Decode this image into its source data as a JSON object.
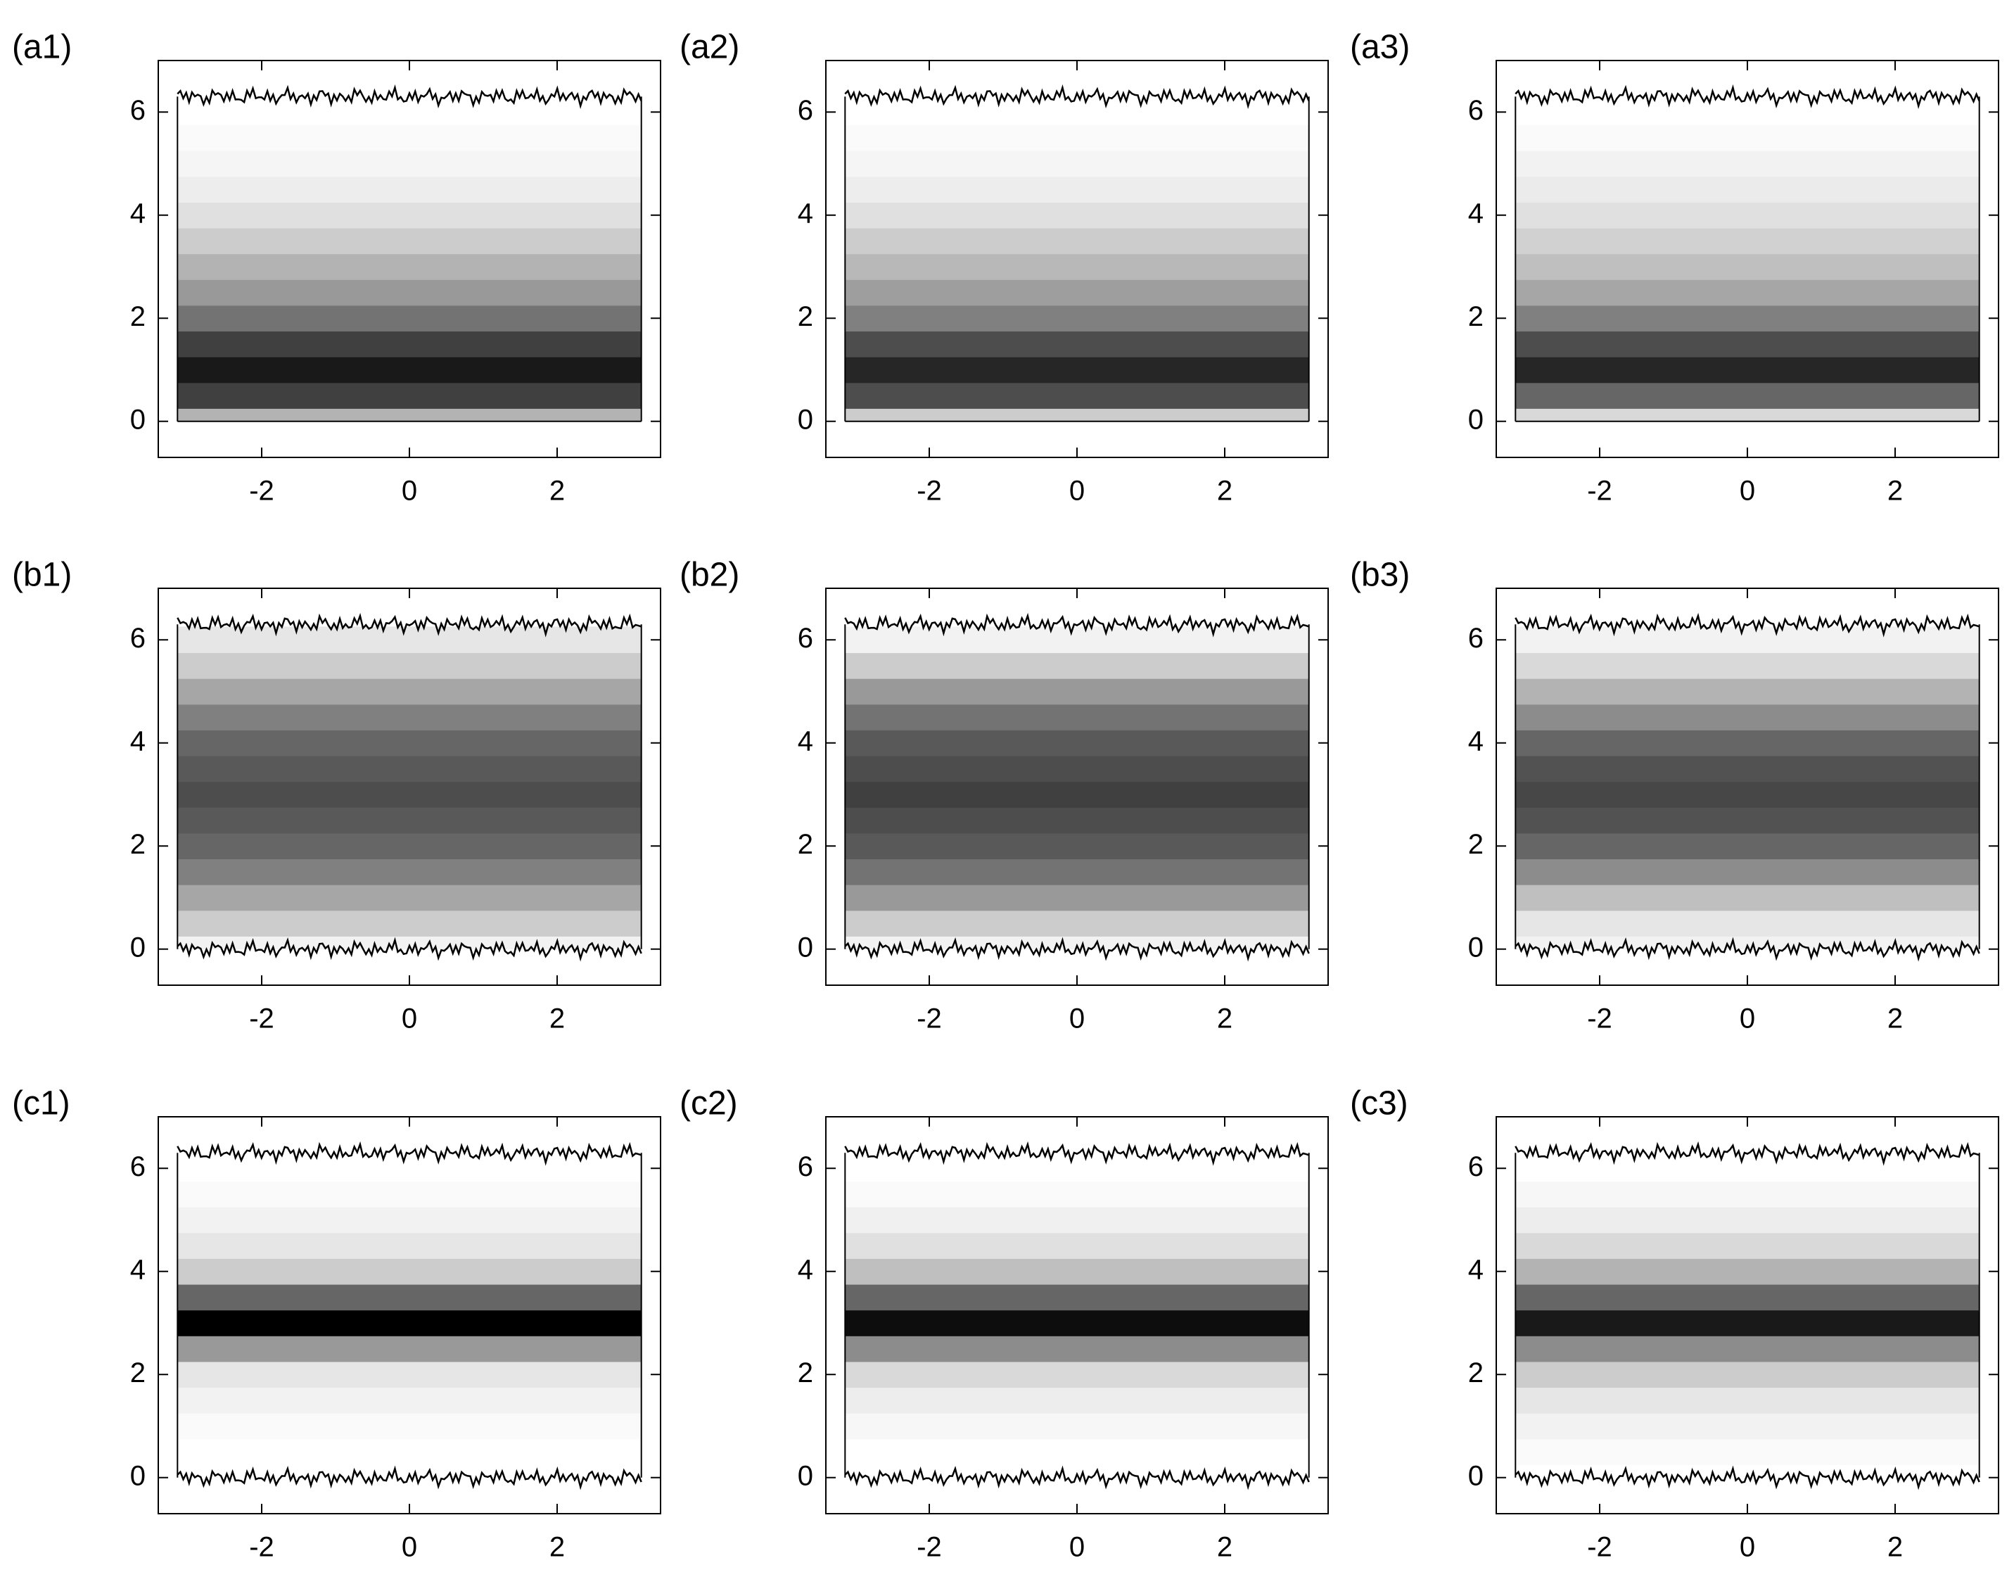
{
  "chart_data": [
    {
      "type": "heatmap",
      "title": "(a1)",
      "xlim": [
        -3.4,
        3.4
      ],
      "ylim": [
        -0.7,
        7
      ],
      "xticks": [
        -2,
        0,
        2
      ],
      "yticks": [
        0,
        2,
        4,
        6
      ],
      "extent": [
        -3.14,
        3.14
      ],
      "color": "#000000",
      "boundaries": [
        6.3
      ],
      "profile_y": [
        0,
        0.5,
        1,
        1.5,
        2,
        2.5,
        3,
        3.5,
        4,
        4.5,
        5,
        5.5,
        6
      ],
      "values": [
        0.3,
        0.75,
        0.9,
        0.75,
        0.55,
        0.4,
        0.3,
        0.2,
        0.12,
        0.07,
        0.04,
        0.02,
        0
      ]
    },
    {
      "type": "heatmap",
      "title": "(a2)",
      "xlim": [
        -3.4,
        3.4
      ],
      "ylim": [
        -0.7,
        7
      ],
      "xticks": [
        -2,
        0,
        2
      ],
      "yticks": [
        0,
        2,
        4,
        6
      ],
      "extent": [
        -3.14,
        3.14
      ],
      "color": "#000000",
      "boundaries": [
        6.3
      ],
      "profile_y": [
        0,
        0.5,
        1,
        1.5,
        2,
        2.5,
        3,
        3.5,
        4,
        4.5,
        5,
        5.5,
        6
      ],
      "values": [
        0.2,
        0.7,
        0.85,
        0.7,
        0.5,
        0.38,
        0.28,
        0.2,
        0.12,
        0.07,
        0.04,
        0.02,
        0
      ]
    },
    {
      "type": "heatmap",
      "title": "(a3)",
      "xlim": [
        -3.4,
        3.4
      ],
      "ylim": [
        -0.7,
        7
      ],
      "xticks": [
        -2,
        0,
        2
      ],
      "yticks": [
        0,
        2,
        4,
        6
      ],
      "extent": [
        -3.14,
        3.14
      ],
      "color": "#000000",
      "boundaries": [
        6.3
      ],
      "profile_y": [
        0,
        0.5,
        1,
        1.5,
        2,
        2.5,
        3,
        3.5,
        4,
        4.5,
        5,
        5.5,
        6
      ],
      "values": [
        0.15,
        0.6,
        0.85,
        0.7,
        0.5,
        0.35,
        0.25,
        0.18,
        0.12,
        0.08,
        0.05,
        0.02,
        0
      ]
    },
    {
      "type": "heatmap",
      "title": "(b1)",
      "xlim": [
        -3.4,
        3.4
      ],
      "ylim": [
        -0.7,
        7
      ],
      "xticks": [
        -2,
        0,
        2
      ],
      "yticks": [
        0,
        2,
        4,
        6
      ],
      "extent": [
        -3.14,
        3.14
      ],
      "color": "#000000",
      "boundaries": [
        0,
        6.3
      ],
      "profile_y": [
        0,
        0.5,
        1,
        1.5,
        2,
        2.5,
        3,
        3.5,
        4,
        4.5,
        5,
        5.5,
        6
      ],
      "values": [
        0.05,
        0.2,
        0.35,
        0.5,
        0.6,
        0.65,
        0.7,
        0.65,
        0.6,
        0.5,
        0.35,
        0.2,
        0.1
      ]
    },
    {
      "type": "heatmap",
      "title": "(b2)",
      "xlim": [
        -3.4,
        3.4
      ],
      "ylim": [
        -0.7,
        7
      ],
      "xticks": [
        -2,
        0,
        2
      ],
      "yticks": [
        0,
        2,
        4,
        6
      ],
      "extent": [
        -3.14,
        3.14
      ],
      "color": "#000000",
      "boundaries": [
        0,
        6.3
      ],
      "profile_y": [
        0,
        0.5,
        1,
        1.5,
        2,
        2.5,
        3,
        3.5,
        4,
        4.5,
        5,
        5.5,
        6
      ],
      "values": [
        0.05,
        0.2,
        0.4,
        0.55,
        0.65,
        0.7,
        0.75,
        0.7,
        0.65,
        0.55,
        0.4,
        0.2,
        0.05
      ]
    },
    {
      "type": "heatmap",
      "title": "(b3)",
      "xlim": [
        -3.4,
        3.4
      ],
      "ylim": [
        -0.7,
        7
      ],
      "xticks": [
        -2,
        0,
        2
      ],
      "yticks": [
        0,
        2,
        4,
        6
      ],
      "extent": [
        -3.14,
        3.14
      ],
      "color": "#000000",
      "boundaries": [
        0,
        6.3
      ],
      "profile_y": [
        0,
        0.5,
        1,
        1.5,
        2,
        2.5,
        3,
        3.5,
        4,
        4.5,
        5,
        5.5,
        6
      ],
      "values": [
        0.05,
        0.1,
        0.25,
        0.45,
        0.6,
        0.68,
        0.72,
        0.68,
        0.6,
        0.45,
        0.3,
        0.15,
        0.05
      ]
    },
    {
      "type": "heatmap",
      "title": "(c1)",
      "xlim": [
        -3.4,
        3.4
      ],
      "ylim": [
        -0.7,
        7
      ],
      "xticks": [
        -2,
        0,
        2
      ],
      "yticks": [
        0,
        2,
        4,
        6
      ],
      "extent": [
        -3.14,
        3.14
      ],
      "color": "#000000",
      "boundaries": [
        0,
        6.3
      ],
      "profile_y": [
        0,
        0.5,
        1,
        1.5,
        2,
        2.5,
        3,
        3.5,
        4,
        4.5,
        5,
        5.5,
        6
      ],
      "values": [
        0,
        0,
        0.02,
        0.05,
        0.1,
        0.4,
        1,
        0.6,
        0.2,
        0.1,
        0.05,
        0.02,
        0
      ]
    },
    {
      "type": "heatmap",
      "title": "(c2)",
      "xlim": [
        -3.4,
        3.4
      ],
      "ylim": [
        -0.7,
        7
      ],
      "xticks": [
        -2,
        0,
        2
      ],
      "yticks": [
        0,
        2,
        4,
        6
      ],
      "extent": [
        -3.14,
        3.14
      ],
      "color": "#000000",
      "boundaries": [
        0,
        6.3
      ],
      "profile_y": [
        0,
        0.5,
        1,
        1.5,
        2,
        2.5,
        3,
        3.5,
        4,
        4.5,
        5,
        5.5,
        6
      ],
      "values": [
        0,
        0,
        0.03,
        0.07,
        0.15,
        0.45,
        0.95,
        0.6,
        0.25,
        0.12,
        0.06,
        0.02,
        0
      ]
    },
    {
      "type": "heatmap",
      "title": "(c3)",
      "xlim": [
        -3.4,
        3.4
      ],
      "ylim": [
        -0.7,
        7
      ],
      "xticks": [
        -2,
        0,
        2
      ],
      "yticks": [
        0,
        2,
        4,
        6
      ],
      "extent": [
        -3.14,
        3.14
      ],
      "color": "#000000",
      "boundaries": [
        0,
        6.3
      ],
      "profile_y": [
        0,
        0.5,
        1,
        1.5,
        2,
        2.5,
        3,
        3.5,
        4,
        4.5,
        5,
        5.5,
        6
      ],
      "values": [
        0,
        0.02,
        0.05,
        0.1,
        0.2,
        0.45,
        0.9,
        0.6,
        0.3,
        0.15,
        0.07,
        0.03,
        0
      ]
    }
  ]
}
